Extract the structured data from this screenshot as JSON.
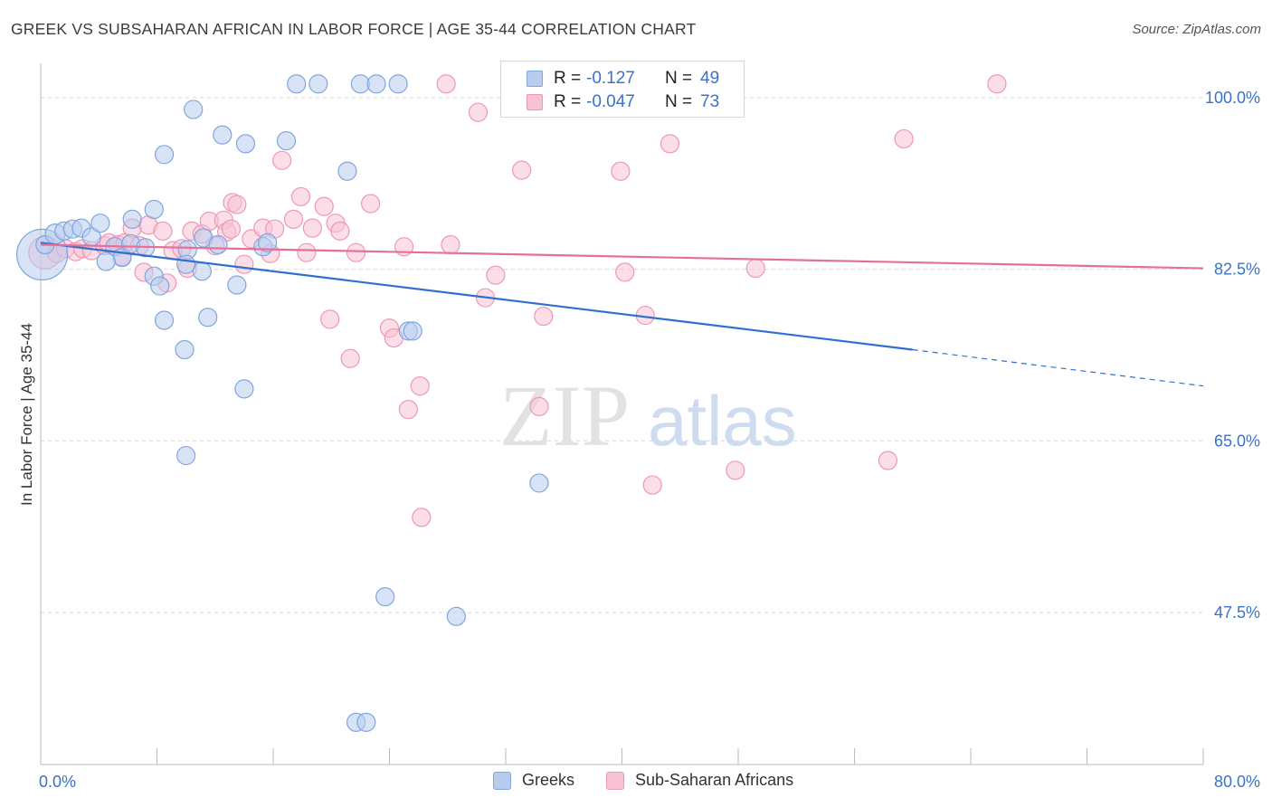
{
  "title": "GREEK VS SUBSAHARAN AFRICAN IN LABOR FORCE | AGE 35-44 CORRELATION CHART",
  "source": "Source: ZipAtlas.com",
  "watermark": {
    "zip": "ZIP",
    "atlas": "atlas"
  },
  "colors": {
    "blue_fill": "#b8cdee",
    "blue_stroke": "#7fa6de",
    "blue_line": "#2f6fd0",
    "pink_fill": "#f7c3d3",
    "pink_stroke": "#ee98b4",
    "pink_line": "#e4709a",
    "axis_text": "#3a72c9",
    "grid": "#d8d8d8"
  },
  "legend_box": {
    "rows": [
      {
        "series": "greeks",
        "r_label": "R =",
        "r_value": "-0.127",
        "n_label": "N =",
        "n_value": "49"
      },
      {
        "series": "subsaharan",
        "r_label": "R =",
        "r_value": "-0.047",
        "n_label": "N =",
        "n_value": "73"
      }
    ]
  },
  "bottom_legend": [
    {
      "series": "greeks",
      "label": "Greeks"
    },
    {
      "series": "subsaharan",
      "label": "Sub-Saharan Africans"
    }
  ],
  "chart_data": {
    "type": "scatter",
    "title": "GREEK VS SUBSAHARAN AFRICAN IN LABOR FORCE | AGE 35-44 CORRELATION CHART",
    "xlabel": "",
    "ylabel": "In Labor Force | Age 35-44",
    "xlim": [
      0,
      80
    ],
    "ylim": [
      32.0,
      103.5
    ],
    "x_tick_labels": [
      {
        "value": 0,
        "label": "0.0%"
      },
      {
        "value": 80,
        "label": "80.0%"
      }
    ],
    "y_tick_labels": [
      {
        "value": 100.0,
        "label": "100.0%"
      },
      {
        "value": 82.5,
        "label": "82.5%"
      },
      {
        "value": 65.0,
        "label": "65.0%"
      },
      {
        "value": 47.5,
        "label": "47.5%"
      }
    ],
    "grid": true,
    "legend_position": "top-center",
    "series": [
      {
        "name": "Greeks",
        "key": "greeks",
        "r": -0.127,
        "n": 49,
        "trend": {
          "x0": 0,
          "y0": 85.2,
          "x1": 60,
          "y1": 74.3,
          "dashed_to_x": 80,
          "dashed_to_y": 70.6
        },
        "points": [
          [
            0.1,
            84.0,
            28
          ],
          [
            0.3,
            85.0,
            10
          ],
          [
            1.0,
            86.1,
            11
          ],
          [
            1.6,
            86.4,
            10
          ],
          [
            2.2,
            86.6,
            10
          ],
          [
            2.8,
            86.7,
            10
          ],
          [
            3.5,
            85.8,
            10
          ],
          [
            4.1,
            87.2,
            10
          ],
          [
            5.1,
            84.8,
            10
          ],
          [
            5.6,
            83.7,
            10
          ],
          [
            6.2,
            85.1,
            10
          ],
          [
            7.2,
            84.7,
            10
          ],
          [
            6.3,
            87.6,
            10
          ],
          [
            7.8,
            81.8,
            10
          ],
          [
            8.2,
            80.8,
            10
          ],
          [
            7.8,
            88.6,
            10
          ],
          [
            8.5,
            77.3,
            10
          ],
          [
            8.5,
            94.2,
            10
          ],
          [
            10.1,
            84.5,
            10
          ],
          [
            9.9,
            74.3,
            10
          ],
          [
            10.0,
            63.5,
            10
          ],
          [
            10.5,
            98.8,
            10
          ],
          [
            11.2,
            85.7,
            10
          ],
          [
            11.1,
            82.3,
            10
          ],
          [
            11.5,
            77.6,
            10
          ],
          [
            12.5,
            96.2,
            10
          ],
          [
            12.2,
            85.0,
            10
          ],
          [
            13.5,
            80.9,
            10
          ],
          [
            14.0,
            70.3,
            10
          ],
          [
            14.1,
            95.3,
            10
          ],
          [
            15.3,
            84.8,
            10
          ],
          [
            15.6,
            85.2,
            10
          ],
          [
            16.9,
            95.6,
            10
          ],
          [
            17.6,
            101.4,
            10
          ],
          [
            19.1,
            101.4,
            10
          ],
          [
            21.1,
            92.5,
            10
          ],
          [
            21.7,
            36.3,
            10
          ],
          [
            22.4,
            36.3,
            10
          ],
          [
            22.0,
            101.4,
            10
          ],
          [
            23.1,
            101.4,
            10
          ],
          [
            24.6,
            101.4,
            10
          ],
          [
            23.7,
            49.1,
            10
          ],
          [
            25.3,
            76.2,
            10
          ],
          [
            25.6,
            76.2,
            10
          ],
          [
            28.6,
            47.1,
            10
          ],
          [
            34.3,
            60.7,
            10
          ],
          [
            43.4,
            101.4,
            10
          ],
          [
            10.0,
            83.0,
            10
          ],
          [
            4.5,
            83.3,
            10
          ]
        ]
      },
      {
        "name": "Sub-Saharan Africans",
        "key": "subsaharan",
        "r": -0.047,
        "n": 73,
        "trend": {
          "x0": 0,
          "y0": 85.0,
          "x1": 80,
          "y1": 82.6
        },
        "points": [
          [
            0.3,
            84.2,
            18
          ],
          [
            1.1,
            84.1,
            10
          ],
          [
            1.7,
            84.6,
            10
          ],
          [
            2.4,
            84.3,
            10
          ],
          [
            2.9,
            84.6,
            10
          ],
          [
            3.5,
            84.4,
            10
          ],
          [
            4.4,
            84.9,
            10
          ],
          [
            4.7,
            85.2,
            10
          ],
          [
            5.3,
            85.0,
            10
          ],
          [
            5.8,
            85.2,
            10
          ],
          [
            6.3,
            86.7,
            10
          ],
          [
            6.8,
            84.9,
            10
          ],
          [
            7.1,
            82.2,
            10
          ],
          [
            7.4,
            87.0,
            10
          ],
          [
            8.4,
            86.4,
            10
          ],
          [
            9.1,
            84.4,
            10
          ],
          [
            8.7,
            81.1,
            10
          ],
          [
            9.7,
            84.6,
            10
          ],
          [
            10.1,
            82.6,
            10
          ],
          [
            10.4,
            86.4,
            10
          ],
          [
            11.1,
            86.1,
            10
          ],
          [
            11.6,
            87.4,
            10
          ],
          [
            12.0,
            84.9,
            10
          ],
          [
            12.6,
            87.5,
            10
          ],
          [
            12.8,
            86.3,
            10
          ],
          [
            13.1,
            86.6,
            10
          ],
          [
            13.2,
            89.3,
            10
          ],
          [
            13.5,
            89.1,
            10
          ],
          [
            14.0,
            83.0,
            10
          ],
          [
            14.5,
            85.6,
            10
          ],
          [
            15.3,
            86.7,
            10
          ],
          [
            15.8,
            84.1,
            10
          ],
          [
            16.1,
            86.6,
            10
          ],
          [
            16.6,
            93.6,
            10
          ],
          [
            17.4,
            87.6,
            10
          ],
          [
            17.9,
            89.9,
            10
          ],
          [
            18.3,
            84.2,
            10
          ],
          [
            18.7,
            86.7,
            10
          ],
          [
            19.5,
            88.9,
            10
          ],
          [
            20.3,
            87.2,
            10
          ],
          [
            20.6,
            86.4,
            10
          ],
          [
            19.9,
            77.4,
            10
          ],
          [
            21.3,
            73.4,
            10
          ],
          [
            21.7,
            84.2,
            10
          ],
          [
            22.7,
            89.2,
            10
          ],
          [
            24.0,
            76.5,
            10
          ],
          [
            24.3,
            75.5,
            10
          ],
          [
            25.0,
            84.8,
            10
          ],
          [
            25.3,
            68.2,
            10
          ],
          [
            26.1,
            70.6,
            10
          ],
          [
            26.2,
            57.2,
            10
          ],
          [
            27.9,
            101.4,
            10
          ],
          [
            28.2,
            85.0,
            10
          ],
          [
            30.1,
            98.5,
            10
          ],
          [
            30.6,
            79.6,
            10
          ],
          [
            31.3,
            81.9,
            10
          ],
          [
            32.3,
            101.4,
            10
          ],
          [
            33.1,
            92.6,
            10
          ],
          [
            34.3,
            68.5,
            10
          ],
          [
            34.6,
            77.7,
            10
          ],
          [
            35.1,
            101.4,
            10
          ],
          [
            37.0,
            101.4,
            10
          ],
          [
            39.9,
            92.5,
            10
          ],
          [
            40.2,
            82.2,
            10
          ],
          [
            41.6,
            77.8,
            10
          ],
          [
            42.1,
            60.5,
            10
          ],
          [
            43.3,
            95.3,
            10
          ],
          [
            47.8,
            62.0,
            10
          ],
          [
            49.2,
            82.6,
            10
          ],
          [
            58.3,
            63.0,
            10
          ],
          [
            59.4,
            95.8,
            10
          ],
          [
            65.8,
            101.4,
            10
          ],
          [
            5.6,
            83.8,
            10
          ]
        ]
      }
    ]
  }
}
